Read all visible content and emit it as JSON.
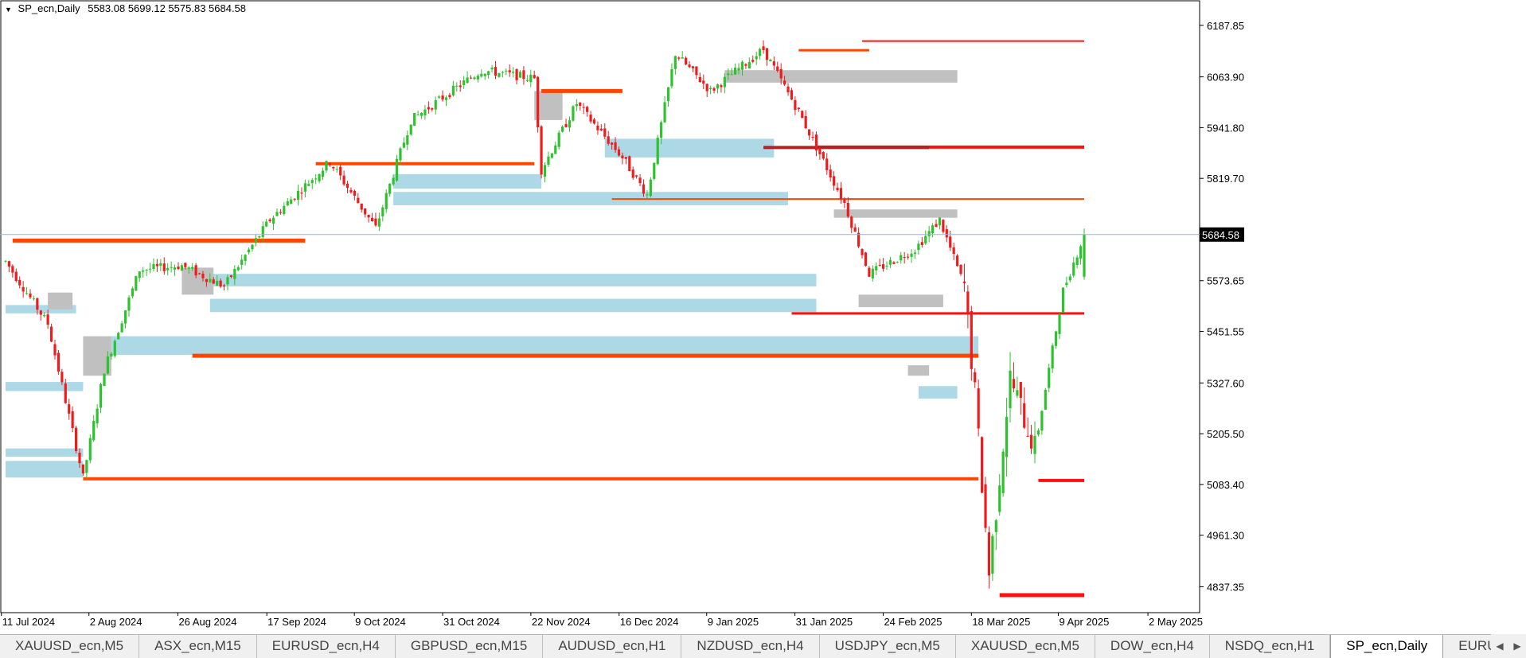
{
  "header": {
    "symbol": "SP_ecn,Daily",
    "ohlc": "5583.08 5699.12 5575.83 5684.58"
  },
  "current_price": "5684.58",
  "tabs": [
    "XAUUSD_ecn,M5",
    "ASX_ecn,M15",
    "EURUSD_ecn,H4",
    "GBPUSD_ecn,M15",
    "AUDUSD_ecn,H1",
    "NZDUSD_ecn,H4",
    "USDJPY_ecn,M5",
    "XAUUSD_ecn,M5",
    "DOW_ecn,H4",
    "NSDQ_ecn,H1",
    "SP_ecn,Daily",
    "EURUSD_ecn,Daily"
  ],
  "active_tab": "SP_ecn,Daily",
  "colors": {
    "bull": "#2ec22e",
    "bear": "#ee1c1c",
    "zone_blue": "#add8e6",
    "zone_gray": "#c0c0c0",
    "level_orange": "#ff4500",
    "level_red": "#ff1010",
    "level_dark": "#b22222",
    "grid": "#d8d8d8",
    "price_line": "#a0b4c8"
  },
  "chart_data": {
    "type": "candlestick",
    "title": "SP_ecn,Daily",
    "ylim": [
      4775,
      6245
    ],
    "y_ticks": [
      "6187.85",
      "6063.90",
      "5941.80",
      "5819.70",
      "5573.65",
      "5451.55",
      "5327.60",
      "5205.50",
      "5083.40",
      "4961.30",
      "4837.35"
    ],
    "x_ticks": [
      "11 Jul 2024",
      "2 Aug 2024",
      "26 Aug 2024",
      "17 Sep 2024",
      "9 Oct 2024",
      "31 Oct 2024",
      "22 Nov 2024",
      "16 Dec 2024",
      "9 Jan 2025",
      "31 Jan 2025",
      "24 Feb 2025",
      "18 Mar 2025",
      "9 Apr 2025",
      "2 May 2025"
    ],
    "last_bar": {
      "open": 5583.08,
      "high": 5699.12,
      "low": 5575.83,
      "close": 5684.58
    },
    "anchors": [
      [
        0,
        5620
      ],
      [
        12,
        5470
      ],
      [
        22,
        5100
      ],
      [
        28,
        5360
      ],
      [
        38,
        5600
      ],
      [
        50,
        5610
      ],
      [
        62,
        5560
      ],
      [
        75,
        5720
      ],
      [
        92,
        5860
      ],
      [
        105,
        5700
      ],
      [
        115,
        5960
      ],
      [
        135,
        6080
      ],
      [
        150,
        6060
      ],
      [
        152,
        5840
      ],
      [
        162,
        6000
      ],
      [
        175,
        5870
      ],
      [
        182,
        5780
      ],
      [
        190,
        6120
      ],
      [
        200,
        6030
      ],
      [
        215,
        6130
      ],
      [
        225,
        5980
      ],
      [
        238,
        5760
      ],
      [
        245,
        5590
      ],
      [
        258,
        5650
      ],
      [
        265,
        5720
      ],
      [
        272,
        5560
      ],
      [
        275,
        5300
      ],
      [
        279,
        4870
      ],
      [
        285,
        5340
      ],
      [
        292,
        5170
      ],
      [
        300,
        5550
      ],
      [
        306,
        5684
      ]
    ],
    "levels": [
      {
        "name": "level-6150",
        "price": 6150,
        "from_bar": 243,
        "to_bar": 306,
        "color": "level_red",
        "width": 2
      },
      {
        "name": "level-6128",
        "price": 6128,
        "from_bar": 225,
        "to_bar": 245,
        "color": "level_orange",
        "width": 3
      },
      {
        "name": "level-6030",
        "price": 6030,
        "from_bar": 152,
        "to_bar": 175,
        "color": "level_orange",
        "width": 5
      },
      {
        "name": "level-5895",
        "price": 5895,
        "from_bar": 230,
        "to_bar": 306,
        "color": "level_red",
        "width": 4
      },
      {
        "name": "level-5894",
        "price": 5894,
        "from_bar": 215,
        "to_bar": 262,
        "color": "level_dark",
        "width": 4
      },
      {
        "name": "level-5855",
        "price": 5855,
        "from_bar": 88,
        "to_bar": 150,
        "color": "level_orange",
        "width": 4
      },
      {
        "name": "level-5770",
        "price": 5770,
        "from_bar": 172,
        "to_bar": 306,
        "color": "level_orange",
        "width": 2
      },
      {
        "name": "level-5670",
        "price": 5670,
        "from_bar": 2,
        "to_bar": 85,
        "color": "level_orange",
        "width": 5
      },
      {
        "name": "level-5495",
        "price": 5495,
        "from_bar": 223,
        "to_bar": 306,
        "color": "level_red",
        "width": 3
      },
      {
        "name": "level-5393",
        "price": 5393,
        "from_bar": 53,
        "to_bar": 276,
        "color": "level_orange",
        "width": 5
      },
      {
        "name": "level-5097",
        "price": 5097,
        "from_bar": 22,
        "to_bar": 276,
        "color": "level_orange",
        "width": 4
      },
      {
        "name": "level-5093",
        "price": 5093,
        "from_bar": 293,
        "to_bar": 306,
        "color": "level_red",
        "width": 4
      },
      {
        "name": "level-4817",
        "price": 4817,
        "from_bar": 282,
        "to_bar": 306,
        "color": "level_red",
        "width": 5
      }
    ],
    "zones": [
      {
        "name": "zone-blue-5135",
        "color": "zone_blue",
        "from_bar": 0,
        "to_bar": 22,
        "p1": 5140,
        "p2": 5100
      },
      {
        "name": "zone-blue-5165",
        "color": "zone_blue",
        "from_bar": 0,
        "to_bar": 22,
        "p1": 5170,
        "p2": 5150
      },
      {
        "name": "zone-blue-5315",
        "color": "zone_blue",
        "from_bar": 0,
        "to_bar": 22,
        "p1": 5330,
        "p2": 5308
      },
      {
        "name": "zone-blue-5430",
        "color": "zone_blue",
        "from_bar": 30,
        "to_bar": 276,
        "p1": 5440,
        "p2": 5395
      },
      {
        "name": "zone-blue-5515",
        "color": "zone_blue",
        "from_bar": 58,
        "to_bar": 230,
        "p1": 5530,
        "p2": 5498
      },
      {
        "name": "zone-blue-5575",
        "color": "zone_blue",
        "from_bar": 58,
        "to_bar": 230,
        "p1": 5590,
        "p2": 5560
      },
      {
        "name": "zone-blue-5505-left",
        "color": "zone_blue",
        "from_bar": 0,
        "to_bar": 20,
        "p1": 5515,
        "p2": 5495
      },
      {
        "name": "zone-blue-5775",
        "color": "zone_blue",
        "from_bar": 110,
        "to_bar": 222,
        "p1": 5787,
        "p2": 5755
      },
      {
        "name": "zone-blue-5810",
        "color": "zone_blue",
        "from_bar": 110,
        "to_bar": 152,
        "p1": 5830,
        "p2": 5795
      },
      {
        "name": "zone-blue-5880",
        "color": "zone_blue",
        "from_bar": 170,
        "to_bar": 218,
        "p1": 5915,
        "p2": 5870
      },
      {
        "name": "zone-blue-5310",
        "color": "zone_blue",
        "from_bar": 259,
        "to_bar": 270,
        "p1": 5320,
        "p2": 5290
      },
      {
        "name": "zone-gray-5400",
        "color": "zone_gray",
        "from_bar": 22,
        "to_bar": 30,
        "p1": 5440,
        "p2": 5345
      },
      {
        "name": "zone-gray-5580",
        "color": "zone_gray",
        "from_bar": 50,
        "to_bar": 59,
        "p1": 5605,
        "p2": 5540
      },
      {
        "name": "zone-gray-5530",
        "color": "zone_gray",
        "from_bar": 12,
        "to_bar": 19,
        "p1": 5545,
        "p2": 5505
      },
      {
        "name": "zone-gray-6070",
        "color": "zone_gray",
        "from_bar": 204,
        "to_bar": 270,
        "p1": 6080,
        "p2": 6050
      },
      {
        "name": "zone-gray-5740",
        "color": "zone_gray",
        "from_bar": 235,
        "to_bar": 270,
        "p1": 5745,
        "p2": 5725
      },
      {
        "name": "zone-gray-5525",
        "color": "zone_gray",
        "from_bar": 242,
        "to_bar": 266,
        "p1": 5540,
        "p2": 5510
      },
      {
        "name": "zone-gray-5355",
        "color": "zone_gray",
        "from_bar": 256,
        "to_bar": 262,
        "p1": 5370,
        "p2": 5345
      },
      {
        "name": "zone-gray-5960",
        "color": "zone_gray",
        "from_bar": 150,
        "to_bar": 158,
        "p1": 6030,
        "p2": 5960
      }
    ]
  }
}
